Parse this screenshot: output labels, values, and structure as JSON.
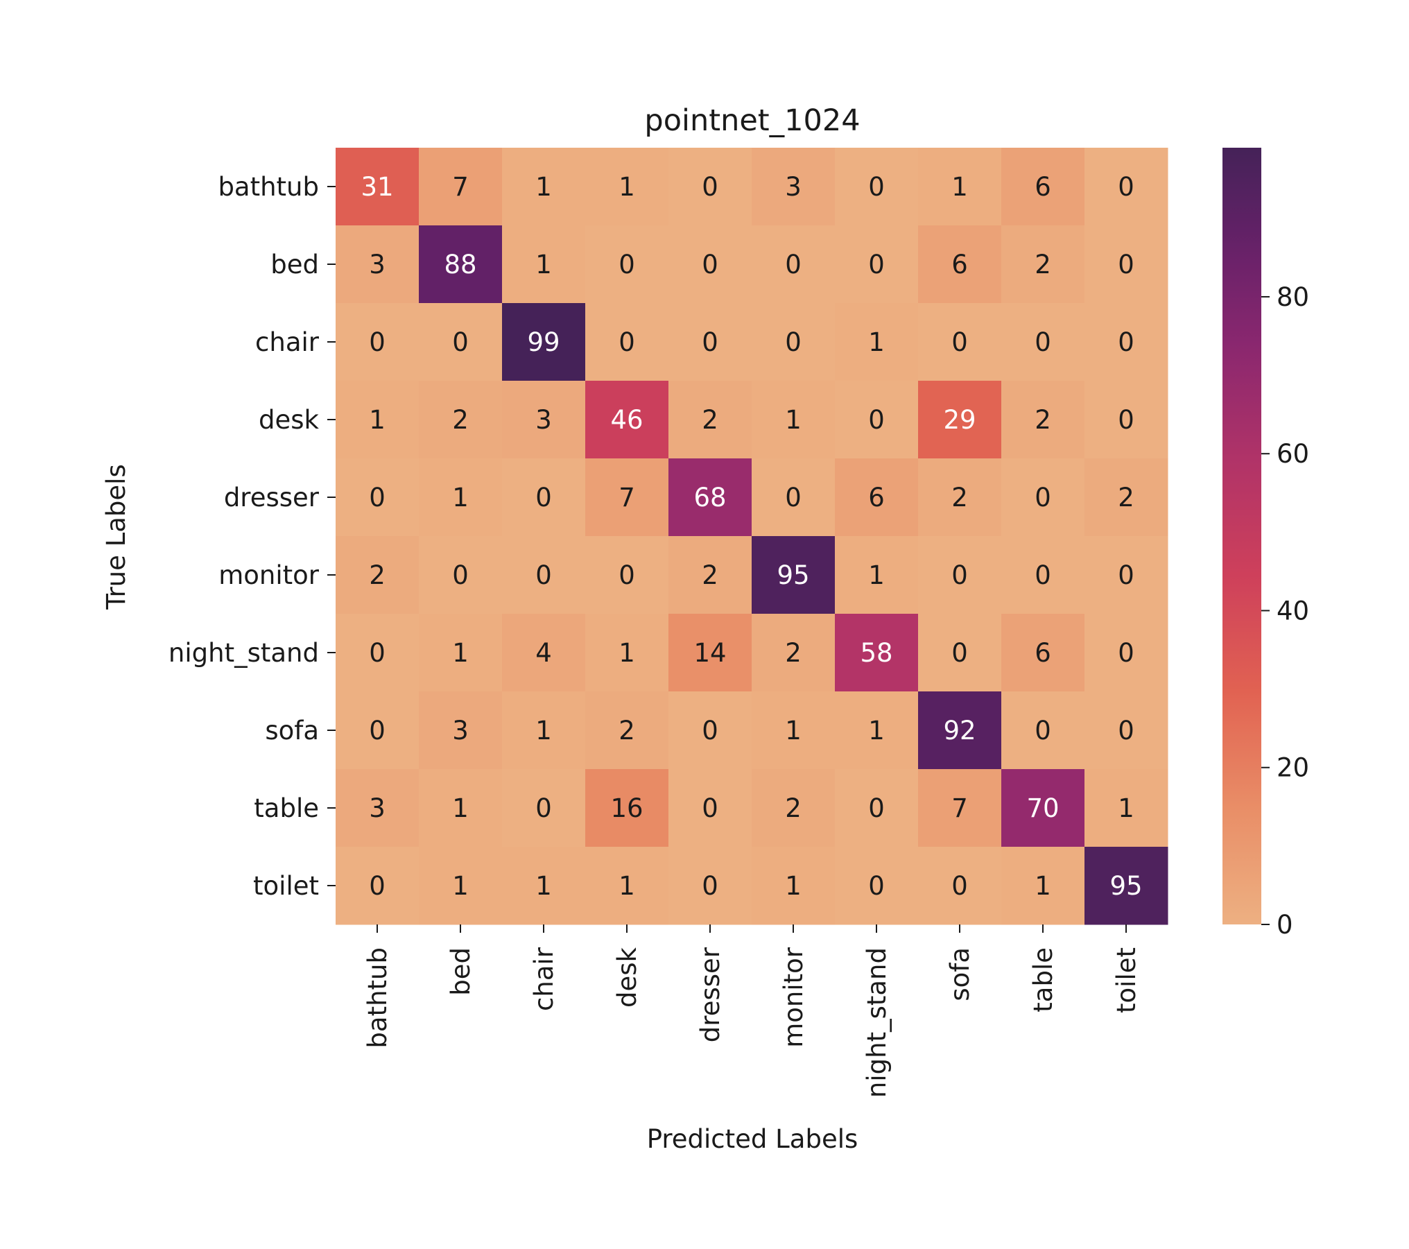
{
  "chart_data": {
    "type": "heatmap",
    "title": "pointnet_1024",
    "xlabel": "Predicted Labels",
    "ylabel": "True Labels",
    "categories": [
      "bathtub",
      "bed",
      "chair",
      "desk",
      "dresser",
      "monitor",
      "night_stand",
      "sofa",
      "table",
      "toilet"
    ],
    "matrix": [
      [
        31,
        7,
        1,
        1,
        0,
        3,
        0,
        1,
        6,
        0
      ],
      [
        3,
        88,
        1,
        0,
        0,
        0,
        0,
        6,
        2,
        0
      ],
      [
        0,
        0,
        99,
        0,
        0,
        0,
        1,
        0,
        0,
        0
      ],
      [
        1,
        2,
        3,
        46,
        2,
        1,
        0,
        29,
        2,
        0
      ],
      [
        0,
        1,
        0,
        7,
        68,
        0,
        6,
        2,
        0,
        2
      ],
      [
        2,
        0,
        0,
        0,
        2,
        95,
        1,
        0,
        0,
        0
      ],
      [
        0,
        1,
        4,
        1,
        14,
        2,
        58,
        0,
        6,
        0
      ],
      [
        0,
        3,
        1,
        2,
        0,
        1,
        1,
        92,
        0,
        0
      ],
      [
        3,
        1,
        0,
        16,
        0,
        2,
        0,
        7,
        70,
        1
      ],
      [
        0,
        1,
        1,
        1,
        0,
        1,
        0,
        0,
        1,
        95
      ]
    ],
    "colorbar": {
      "range": [
        0,
        99
      ],
      "ticks": [
        0,
        20,
        40,
        60,
        80
      ]
    },
    "colormap": "flare",
    "grid": false,
    "legend": "colorbar-right"
  }
}
